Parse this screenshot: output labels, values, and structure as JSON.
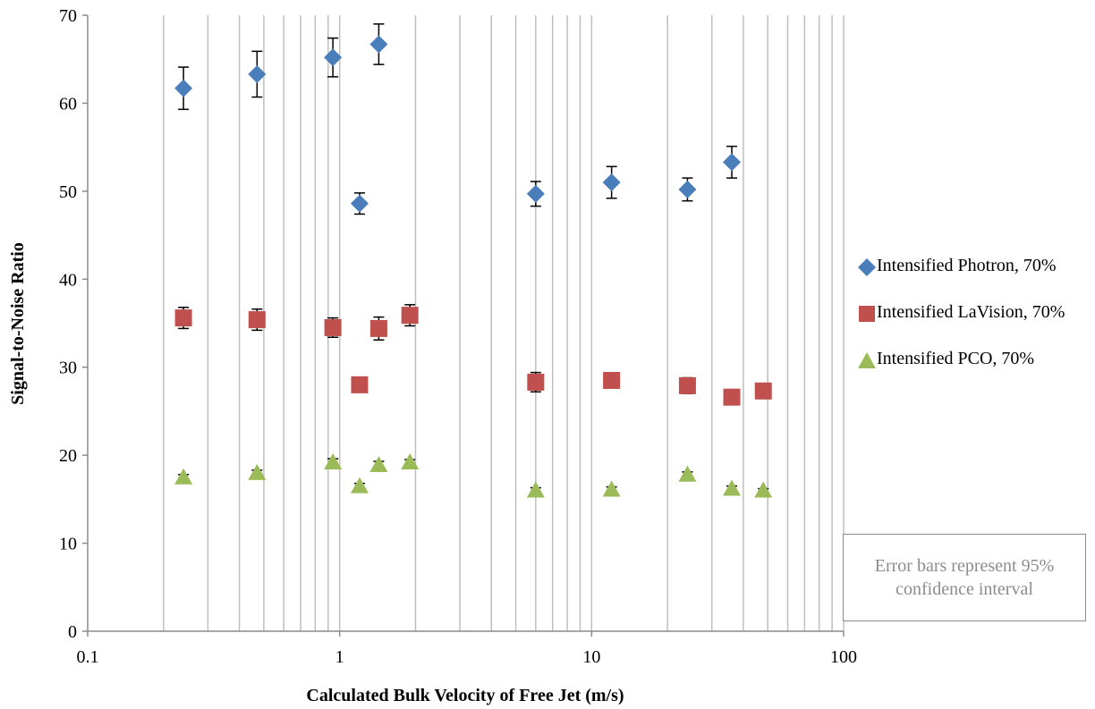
{
  "chart_data": {
    "type": "scatter",
    "xlabel": "Calculated Bulk Velocity of Free Jet (m/s)",
    "ylabel": "Signal-to-Noise Ratio",
    "x_scale": "log",
    "xlim": [
      0.1,
      100
    ],
    "ylim": [
      0,
      70
    ],
    "x_ticks": [
      "0.1",
      "1",
      "10",
      "100"
    ],
    "y_ticks": [
      "0",
      "10",
      "20",
      "30",
      "40",
      "50",
      "60",
      "70"
    ],
    "grid": "vertical",
    "legend_position": "right",
    "series": [
      {
        "name": "Intensified Photron, 70%",
        "color": "#4a7ebb",
        "marker": "diamond",
        "x": [
          0.24,
          0.47,
          0.94,
          1.2,
          1.43,
          6.0,
          12.0,
          24.0,
          36.0
        ],
        "y": [
          61.7,
          63.3,
          65.2,
          48.6,
          66.7,
          49.7,
          51.0,
          50.2,
          53.3
        ],
        "error": [
          2.4,
          2.6,
          2.2,
          1.2,
          2.3,
          1.4,
          1.8,
          1.3,
          1.8
        ]
      },
      {
        "name": "Intensified LaVision, 70%",
        "color": "#c0504d",
        "marker": "square",
        "x": [
          0.24,
          0.47,
          0.94,
          1.2,
          1.43,
          1.9,
          6.0,
          12.0,
          24.0,
          36.0,
          48.0
        ],
        "y": [
          35.6,
          35.4,
          34.5,
          28.0,
          34.4,
          35.9,
          28.3,
          28.5,
          27.9,
          26.6,
          27.3
        ],
        "error": [
          1.2,
          1.2,
          1.1,
          0.4,
          1.3,
          1.2,
          1.1,
          0.4,
          0.9,
          0.4,
          0.3
        ]
      },
      {
        "name": "Intensified PCO, 70%",
        "color": "#9bbb59",
        "marker": "triangle",
        "x": [
          0.24,
          0.47,
          0.94,
          1.2,
          1.43,
          1.9,
          6.0,
          12.0,
          24.0,
          36.0,
          48.0
        ],
        "y": [
          17.5,
          18.0,
          19.2,
          16.5,
          18.9,
          19.2,
          16.0,
          16.1,
          17.8,
          16.2,
          16.0
        ],
        "error": [
          0.3,
          0.3,
          0.4,
          0.3,
          0.4,
          0.3,
          0.3,
          0.3,
          0.3,
          0.3,
          0.2
        ]
      }
    ],
    "annotation": "Error bars represent 95% confidence interval"
  }
}
